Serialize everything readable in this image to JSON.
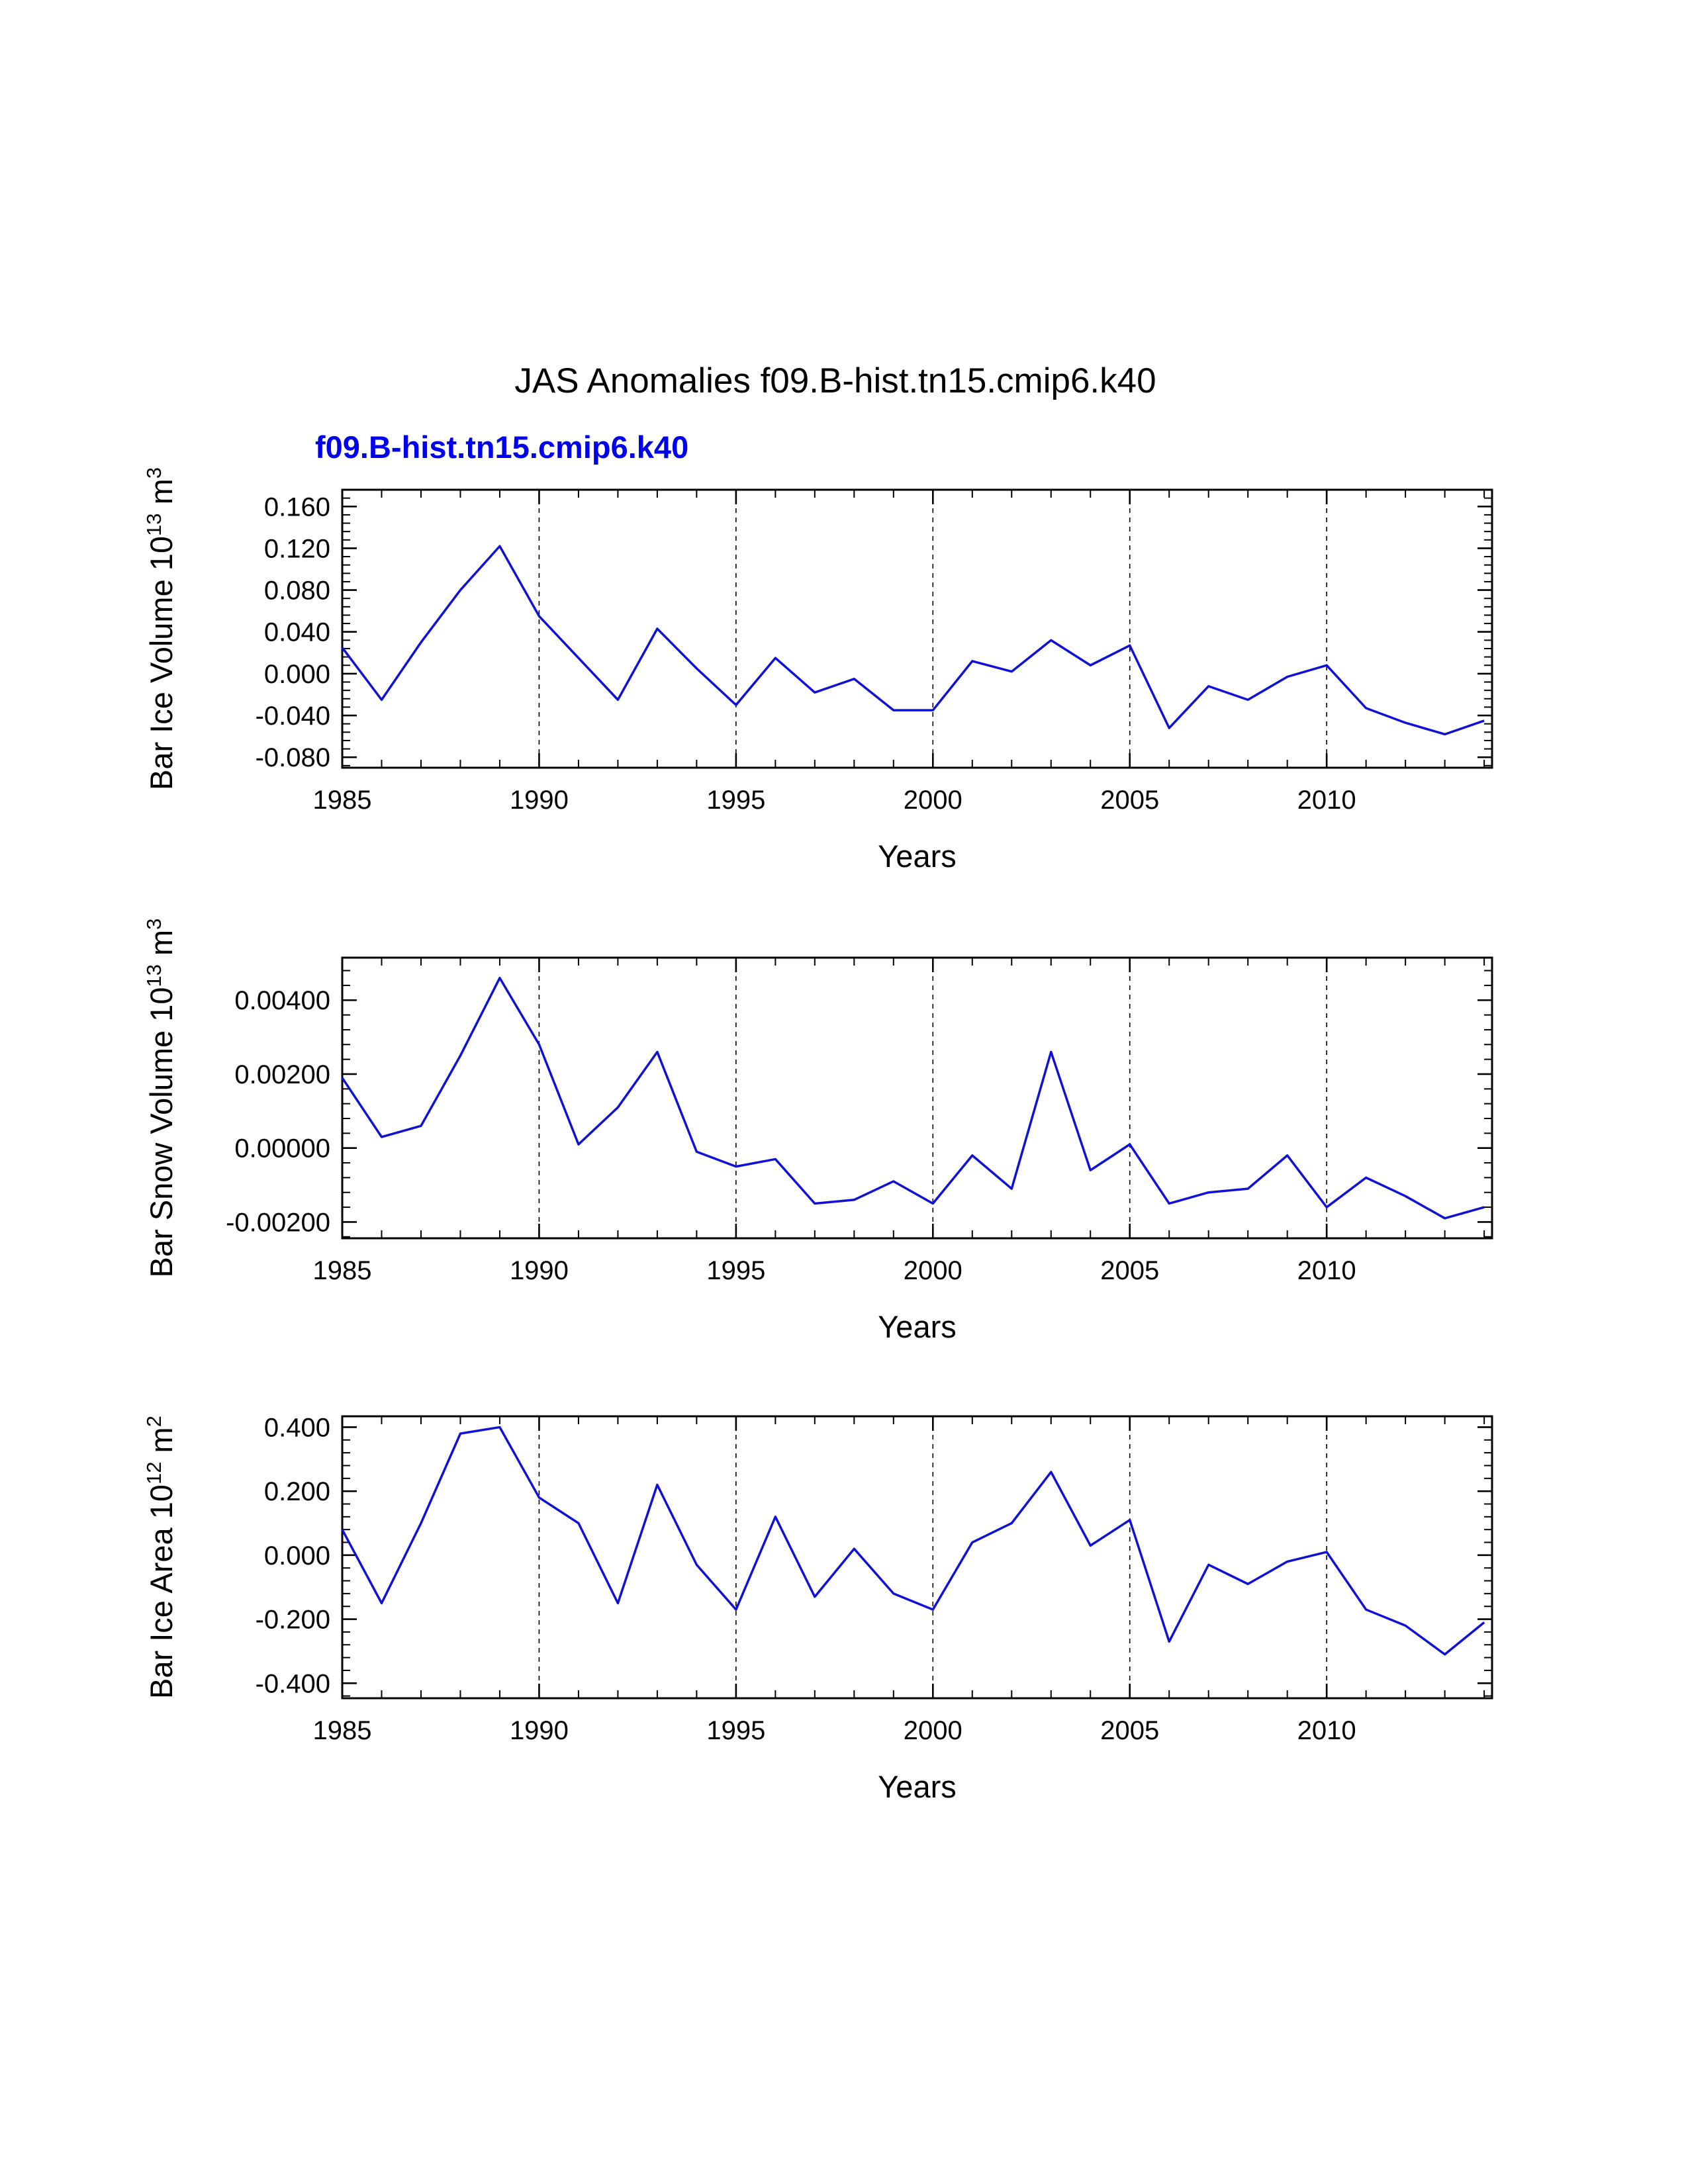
{
  "title": "JAS Anomalies f09.B-hist.tn15.cmip6.k40",
  "subtitle": "f09.B-hist.tn15.cmip6.k40",
  "colors": {
    "line": "#0f10d8",
    "subtitle": "#0000f0",
    "axis": "#000000"
  },
  "chart_data": [
    {
      "type": "line",
      "name": "bar-ice-volume",
      "title": "",
      "xlabel": "Years",
      "ylabel_text": "Bar Ice Volume 10^13 m^3",
      "ylabel_segments": [
        {
          "t": "Bar Ice Volume 10"
        },
        {
          "t": "13",
          "sup": true
        },
        {
          "t": " m"
        },
        {
          "t": "3",
          "sup": true
        }
      ],
      "x": [
        1985,
        1986,
        1987,
        1988,
        1989,
        1990,
        1991,
        1992,
        1993,
        1994,
        1995,
        1996,
        1997,
        1998,
        1999,
        2000,
        2001,
        2002,
        2003,
        2004,
        2005,
        2006,
        2007,
        2008,
        2009,
        2010,
        2011,
        2012,
        2013,
        2014
      ],
      "values": [
        0.025,
        -0.025,
        0.03,
        0.08,
        0.122,
        0.055,
        0.015,
        -0.025,
        0.043,
        0.005,
        -0.03,
        0.015,
        -0.018,
        -0.005,
        -0.035,
        -0.035,
        0.012,
        0.002,
        0.032,
        0.008,
        0.027,
        -0.052,
        -0.012,
        -0.025,
        -0.003,
        0.008,
        -0.033,
        -0.047,
        -0.058,
        -0.045
      ],
      "xlim": [
        1985,
        2014.2
      ],
      "ylim": [
        -0.09,
        0.176
      ],
      "xticks": [
        1985,
        1990,
        1995,
        2000,
        2005,
        2010
      ],
      "xtick_labels": [
        "1985",
        "1990",
        "1995",
        "2000",
        "2005",
        "2010"
      ],
      "x_minor_step": 1,
      "yticks": [
        -0.08,
        -0.04,
        0.0,
        0.04,
        0.08,
        0.12,
        0.16
      ],
      "ytick_labels": [
        "-0.080",
        "-0.040",
        "0.000",
        "0.040",
        "0.080",
        "0.120",
        "0.160"
      ],
      "y_minor_step": 0.008,
      "grid_x": [
        1990,
        1995,
        2000,
        2005,
        2010
      ],
      "grid_style": "dashed-vertical",
      "legend": "none"
    },
    {
      "type": "line",
      "name": "bar-snow-volume",
      "title": "",
      "xlabel": "Years",
      "ylabel_text": "Bar Snow Volume 10^13 m^3",
      "ylabel_segments": [
        {
          "t": "Bar Snow Volume 10"
        },
        {
          "t": "13",
          "sup": true
        },
        {
          "t": " m"
        },
        {
          "t": "3",
          "sup": true
        }
      ],
      "x": [
        1985,
        1986,
        1987,
        1988,
        1989,
        1990,
        1991,
        1992,
        1993,
        1994,
        1995,
        1996,
        1997,
        1998,
        1999,
        2000,
        2001,
        2002,
        2003,
        2004,
        2005,
        2006,
        2007,
        2008,
        2009,
        2010,
        2011,
        2012,
        2013,
        2014
      ],
      "values": [
        0.0019,
        0.0003,
        0.0006,
        0.0025,
        0.0046,
        0.0028,
        0.0001,
        0.0011,
        0.0026,
        -0.0001,
        -0.0005,
        -0.0003,
        -0.0015,
        -0.0014,
        -0.0009,
        -0.0015,
        -0.0002,
        -0.0011,
        0.0026,
        -0.0006,
        0.0001,
        -0.0015,
        -0.0012,
        -0.0011,
        -0.0002,
        -0.0016,
        -0.0008,
        -0.0013,
        -0.0019,
        -0.0016
      ],
      "xlim": [
        1985,
        2014.2
      ],
      "ylim": [
        -0.00244,
        0.00515
      ],
      "xticks": [
        1985,
        1990,
        1995,
        2000,
        2005,
        2010
      ],
      "xtick_labels": [
        "1985",
        "1990",
        "1995",
        "2000",
        "2005",
        "2010"
      ],
      "x_minor_step": 1,
      "yticks": [
        -0.002,
        0.0,
        0.002,
        0.004
      ],
      "ytick_labels": [
        "-0.00200",
        "0.00000",
        "0.00200",
        "0.00400"
      ],
      "y_minor_step": 0.0004,
      "grid_x": [
        1990,
        1995,
        2000,
        2005,
        2010
      ],
      "grid_style": "dashed-vertical",
      "legend": "none"
    },
    {
      "type": "line",
      "name": "bar-ice-area",
      "title": "",
      "xlabel": "Years",
      "ylabel_text": "Bar Ice Area 10^12 m^2",
      "ylabel_segments": [
        {
          "t": "Bar Ice Area 10"
        },
        {
          "t": "12",
          "sup": true
        },
        {
          "t": " m"
        },
        {
          "t": "2",
          "sup": true
        }
      ],
      "x": [
        1985,
        1986,
        1987,
        1988,
        1989,
        1990,
        1991,
        1992,
        1993,
        1994,
        1995,
        1996,
        1997,
        1998,
        1999,
        2000,
        2001,
        2002,
        2003,
        2004,
        2005,
        2006,
        2007,
        2008,
        2009,
        2010,
        2011,
        2012,
        2013,
        2014
      ],
      "values": [
        0.08,
        -0.15,
        0.1,
        0.38,
        0.4,
        0.18,
        0.1,
        -0.15,
        0.22,
        -0.03,
        -0.17,
        0.12,
        -0.13,
        0.02,
        -0.12,
        -0.17,
        0.04,
        0.1,
        0.26,
        0.03,
        0.11,
        -0.27,
        -0.03,
        -0.09,
        -0.02,
        0.01,
        -0.17,
        -0.22,
        -0.31,
        -0.21
      ],
      "xlim": [
        1985,
        2014.2
      ],
      "ylim": [
        -0.447,
        0.434
      ],
      "xticks": [
        1985,
        1990,
        1995,
        2000,
        2005,
        2010
      ],
      "xtick_labels": [
        "1985",
        "1990",
        "1995",
        "2000",
        "2005",
        "2010"
      ],
      "x_minor_step": 1,
      "yticks": [
        -0.4,
        -0.2,
        0.0,
        0.2,
        0.4
      ],
      "ytick_labels": [
        "-0.400",
        "-0.200",
        "0.000",
        "0.200",
        "0.400"
      ],
      "y_minor_step": 0.04,
      "grid_x": [
        1990,
        1995,
        2000,
        2005,
        2010
      ],
      "grid_style": "dashed-vertical",
      "legend": "none"
    }
  ]
}
